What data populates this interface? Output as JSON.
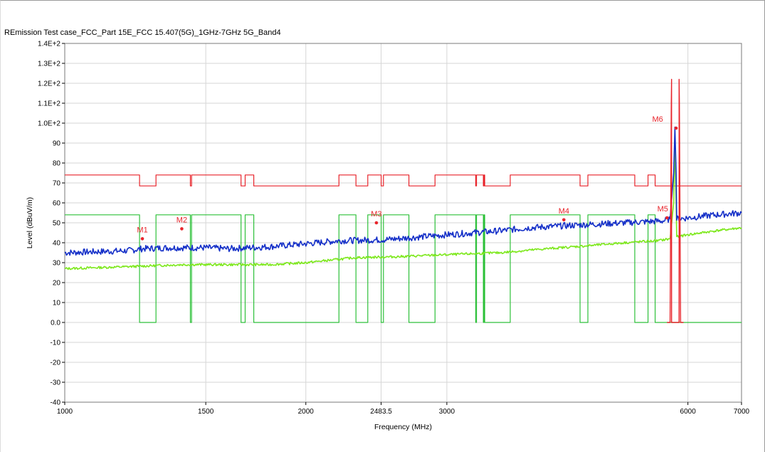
{
  "chart_data": {
    "type": "line",
    "title": "REmission Test case_FCC_Part 15E_FCC 15.407(5G)_1GHz-7GHz 5G_Band4",
    "xlabel": "Frequency (MHz)",
    "ylabel": "Level (dBuV/m)",
    "x_scale": "log",
    "xlim": [
      1000,
      7000
    ],
    "ylim": [
      -40,
      140
    ],
    "x_ticks": [
      1000,
      1500,
      2000,
      2483.5,
      3000,
      6000,
      7000
    ],
    "x_tick_labels": [
      "1000",
      "1500",
      "2000",
      "2483.5",
      "3000",
      "6000",
      "7000"
    ],
    "y_ticks": [
      -40,
      -30,
      -20,
      -10,
      0,
      10,
      20,
      30,
      40,
      50,
      60,
      70,
      80,
      90,
      100,
      110,
      120,
      130,
      140
    ],
    "y_tick_labels": [
      "-40",
      "-30",
      "-20",
      "-10",
      "0.0",
      "10",
      "20",
      "30",
      "40",
      "50",
      "60",
      "70",
      "80",
      "90",
      "1.0E+2",
      "1.1E+2",
      "1.2E+2",
      "1.3E+2",
      "1.4E+2"
    ],
    "grid": true,
    "legend": "none",
    "colors": {
      "peak_limit": "#e8242b",
      "avg_limit": "#2ec13a",
      "peak_trace": "#1530c8",
      "avg_trace": "#7de81c",
      "band_limit": "#e8242b"
    },
    "series": [
      {
        "key": "peak_limit",
        "values_x": [
          1000,
          1240,
          1240,
          1300,
          1300,
          1435,
          1435,
          1440,
          1440,
          1660,
          1660,
          1680,
          1680,
          1722,
          1722,
          2200,
          2200,
          2310,
          2310,
          2390,
          2390,
          2483.5,
          2483.5,
          2500,
          2500,
          2690,
          2690,
          2900,
          2900,
          3260,
          3260,
          3267,
          3267,
          3332,
          3332,
          3339,
          3339,
          3345,
          3345,
          3600,
          3600,
          4400,
          4400,
          4500,
          4500,
          5150,
          5150,
          5350,
          5350,
          5460,
          5460,
          7000
        ],
        "values": [
          74,
          74,
          68.5,
          68.5,
          74,
          74,
          68.5,
          68.5,
          74,
          74,
          68.5,
          68.5,
          74,
          74,
          68.5,
          68.5,
          74,
          74,
          68.5,
          68.5,
          74,
          74,
          68.5,
          68.5,
          74,
          74,
          68.5,
          68.5,
          74,
          74,
          68.5,
          68.5,
          74,
          74,
          68.5,
          68.5,
          74,
          74,
          68.5,
          68.5,
          74,
          74,
          68.5,
          68.5,
          74,
          74,
          68.5,
          68.5,
          74,
          74,
          68.5,
          68.5
        ]
      },
      {
        "key": "avg_limit",
        "values_x": [
          1000,
          1240,
          1240,
          1300,
          1300,
          1435,
          1435,
          1440,
          1440,
          1660,
          1660,
          1680,
          1680,
          1722,
          1722,
          2200,
          2200,
          2310,
          2310,
          2390,
          2390,
          2483.5,
          2483.5,
          2500,
          2500,
          2690,
          2690,
          2900,
          2900,
          3260,
          3260,
          3267,
          3267,
          3332,
          3332,
          3339,
          3339,
          3345,
          3345,
          3600,
          3600,
          4400,
          4400,
          4500,
          4500,
          5150,
          5150,
          5350,
          5350,
          5460,
          5460,
          7000
        ],
        "values": [
          54,
          54,
          0,
          0,
          54,
          54,
          0,
          0,
          54,
          54,
          0,
          0,
          54,
          54,
          0,
          0,
          54,
          54,
          0,
          0,
          54,
          54,
          0,
          0,
          54,
          54,
          0,
          0,
          54,
          54,
          0,
          0,
          54,
          54,
          0,
          0,
          54,
          54,
          0,
          0,
          54,
          54,
          0,
          0,
          54,
          54,
          0,
          0,
          54,
          54,
          0,
          0
        ]
      },
      {
        "key": "band_limit",
        "values_x": [
          5650,
          5700,
          5720,
          5725,
          5725,
          5850,
          5850,
          5855,
          5875,
          5925
        ],
        "values": [
          0,
          0,
          110,
          122,
          0,
          0,
          122,
          110,
          0,
          0
        ]
      },
      {
        "key": "peak_trace",
        "values_x": [
          1000,
          1200,
          1250,
          1350,
          1500,
          1600,
          1800,
          2000,
          2200,
          2483.5,
          2600,
          3000,
          3500,
          3800,
          4200,
          4700,
          5300,
          5600,
          5700,
          5760,
          5780,
          5800,
          5810,
          5850,
          6000,
          6500,
          7000
        ],
        "values": [
          35,
          36,
          37,
          37.5,
          37.5,
          37,
          38,
          39.5,
          41,
          41.5,
          42,
          44,
          46,
          47.5,
          48.5,
          49.5,
          50.5,
          51,
          52,
          75,
          98,
          75,
          52,
          52,
          52.5,
          54,
          55
        ]
      },
      {
        "key": "avg_trace",
        "values_x": [
          1000,
          1200,
          1400,
          1600,
          1800,
          2000,
          2300,
          2600,
          3000,
          3500,
          4000,
          4500,
          5000,
          5500,
          5700,
          5760,
          5780,
          5800,
          5810,
          6000,
          6500,
          7000
        ],
        "values": [
          27,
          28,
          29,
          29,
          29,
          30,
          32.5,
          33,
          34,
          35,
          37,
          38.5,
          40,
          41,
          42,
          60,
          92,
          60,
          43,
          44,
          46,
          47.5
        ]
      }
    ],
    "markers": [
      {
        "label": "M1",
        "x": 1250,
        "y": 42
      },
      {
        "label": "M2",
        "x": 1400,
        "y": 47
      },
      {
        "label": "M3",
        "x": 2450,
        "y": 50
      },
      {
        "label": "M4",
        "x": 4200,
        "y": 51.5
      },
      {
        "label": "M5",
        "x": 5650,
        "y": 52.5
      },
      {
        "label": "M6",
        "x": 5800,
        "y": 97.5
      }
    ]
  }
}
